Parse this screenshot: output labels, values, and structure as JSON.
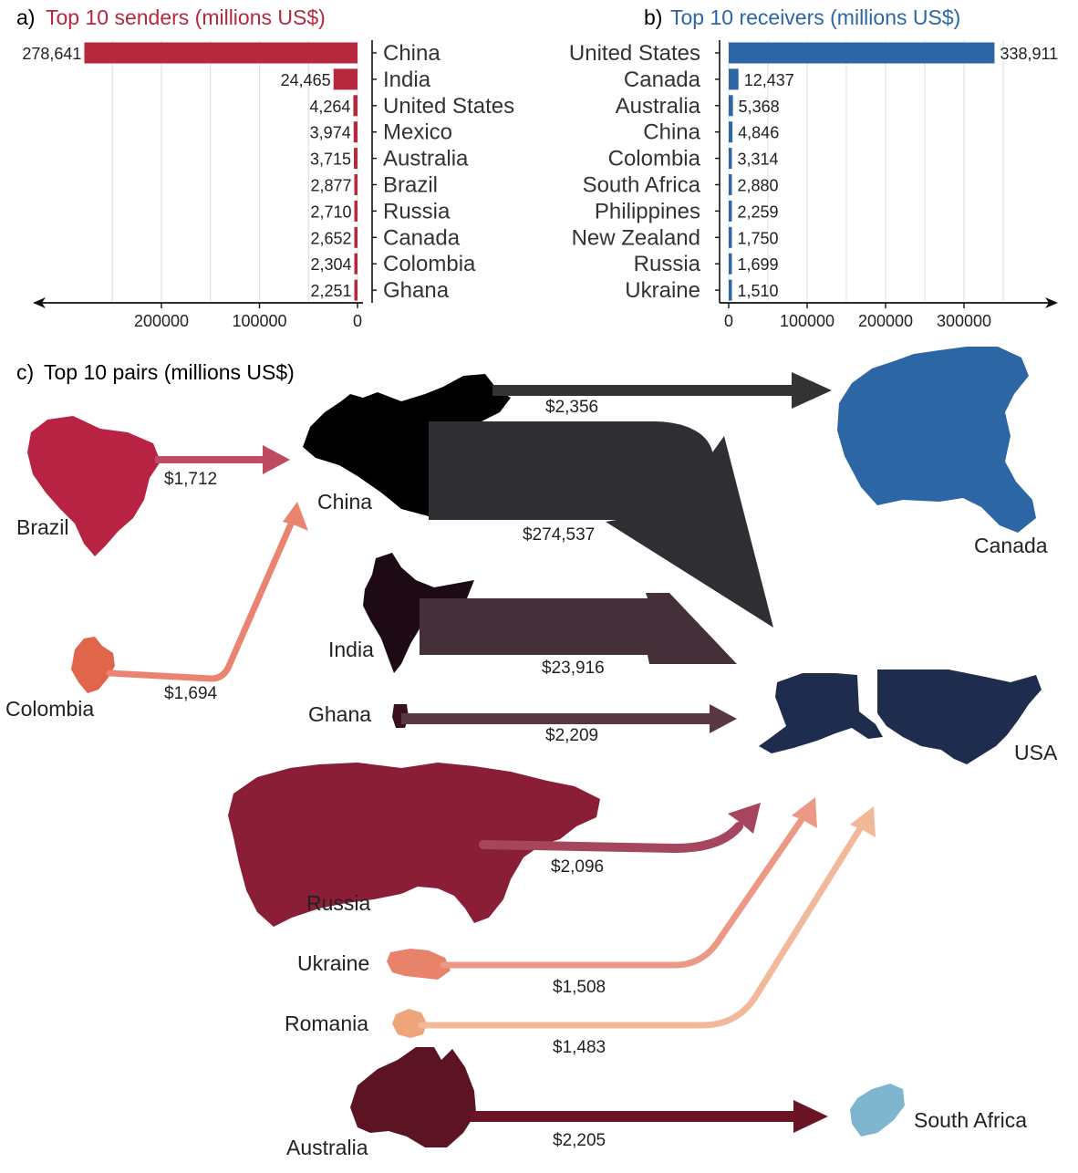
{
  "colors": {
    "senders": "#b5283e",
    "receivers": "#2d66a4",
    "china": "#000000",
    "canada": "#2d66a4",
    "usa": "#1e2d4e",
    "south_africa": "#7fb6cf",
    "brazil": "#b82243",
    "colombia": "#e1654b",
    "india": "#1e0a14",
    "ghana": "#3a0f1e",
    "russia": "#8b1e37",
    "ukraine": "#e9826b",
    "romania": "#efa57c",
    "australia": "#5c1324"
  },
  "chart_data": [
    {
      "panel": "a",
      "panel_letter": "a)",
      "type": "bar",
      "orientation": "horizontal",
      "x_direction": "reversed",
      "title": "Top 10 senders (millions US$)",
      "categories": [
        "China",
        "India",
        "United States",
        "Mexico",
        "Australia",
        "Brazil",
        "Russia",
        "Canada",
        "Colombia",
        "Ghana"
      ],
      "values": [
        278641,
        24465,
        4264,
        3974,
        3715,
        2877,
        2710,
        2652,
        2304,
        2251
      ],
      "value_labels": [
        "278,641",
        "24,465",
        "4,264",
        "3,974",
        "3,715",
        "2,877",
        "2,710",
        "2,652",
        "2,304",
        "2,251"
      ],
      "xlim": [
        0,
        300000
      ],
      "xticks": [
        200000,
        100000,
        0
      ],
      "grid": true
    },
    {
      "panel": "b",
      "panel_letter": "b)",
      "type": "bar",
      "orientation": "horizontal",
      "title": "Top 10 receivers (millions US$)",
      "categories": [
        "United States",
        "Canada",
        "Australia",
        "China",
        "Colombia",
        "South Africa",
        "Philippines",
        "New Zealand",
        "Russia",
        "Ukraine"
      ],
      "values": [
        338911,
        12437,
        5368,
        4846,
        3314,
        2880,
        2259,
        1750,
        1699,
        1510
      ],
      "value_labels": [
        "338,911",
        "12,437",
        "5,368",
        "4,846",
        "3,314",
        "2,880",
        "2,259",
        "1,750",
        "1,699",
        "1,510"
      ],
      "xlim": [
        0,
        400000
      ],
      "xticks": [
        0,
        100000,
        200000,
        300000
      ],
      "grid": true
    },
    {
      "panel": "c",
      "panel_letter": "c)",
      "type": "flow-map",
      "title": "Top 10 pairs (millions US$)",
      "flows": [
        {
          "from": "China",
          "to": "Canada",
          "value": 2356,
          "label": "$2,356"
        },
        {
          "from": "Brazil",
          "to": "China",
          "value": 1712,
          "label": "$1,712"
        },
        {
          "from": "Colombia",
          "to": "China",
          "value": 1694,
          "label": "$1,694"
        },
        {
          "from": "China",
          "to": "USA",
          "value": 274537,
          "label": "$274,537"
        },
        {
          "from": "India",
          "to": "USA",
          "value": 23916,
          "label": "$23,916"
        },
        {
          "from": "Ghana",
          "to": "USA",
          "value": 2209,
          "label": "$2,209"
        },
        {
          "from": "Russia",
          "to": "USA",
          "value": 2096,
          "label": "$2,096"
        },
        {
          "from": "Ukraine",
          "to": "USA",
          "value": 1508,
          "label": "$1,508"
        },
        {
          "from": "Romania",
          "to": "USA",
          "value": 1483,
          "label": "$1,483"
        },
        {
          "from": "Australia",
          "to": "South Africa",
          "value": 2205,
          "label": "$2,205"
        }
      ],
      "country_labels": {
        "china": "China",
        "canada": "Canada",
        "brazil": "Brazil",
        "colombia": "Colombia",
        "india": "India",
        "ghana": "Ghana",
        "usa": "USA",
        "russia": "Russia",
        "ukraine": "Ukraine",
        "romania": "Romania",
        "australia": "Australia",
        "south_africa": "South Africa"
      }
    }
  ]
}
